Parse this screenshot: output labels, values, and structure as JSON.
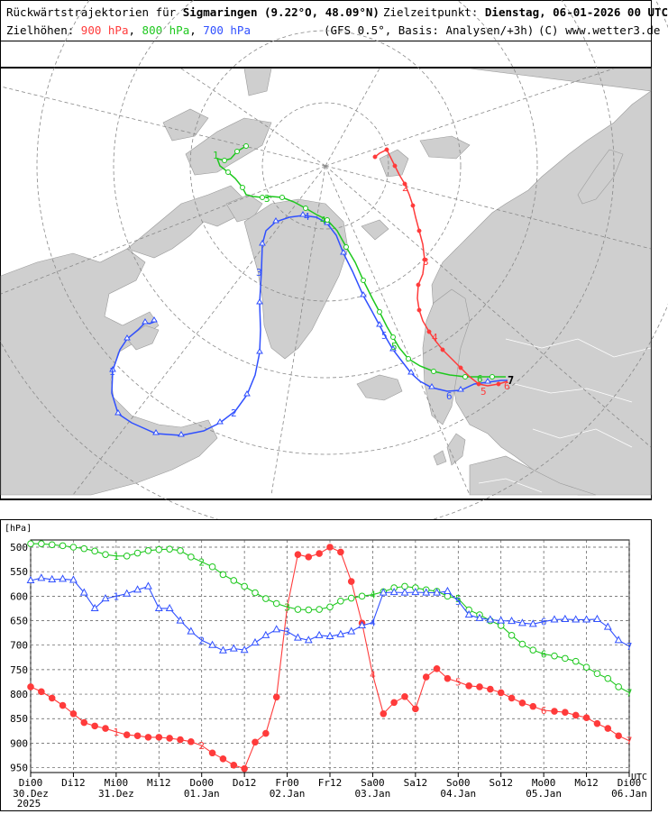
{
  "header": {
    "title_prefix": "Rückwärtstrajektorien für",
    "title_location": "Sigmaringen (9.22°O, 48.09°N)",
    "target_label": "Zielzeitpunkt:",
    "target_value": "Dienstag, 06-01-2026  00 UTC",
    "levels_label": "Zielhöhen:",
    "level_900": "900 hPa",
    "level_800": "800 hPa",
    "level_700": "700 hPa",
    "sep1": ",",
    "sep2": ",",
    "model": "(GFS 0.5°, Basis: Analysen/+3h)",
    "copyright": "(C) www.wetter3.de"
  },
  "map": {
    "land_color": "#cfcfcf",
    "sea_color": "#ffffff",
    "marker_labels_900": [
      "2",
      "3",
      "4",
      "5",
      "6"
    ],
    "marker_labels_800": [
      "1",
      "3",
      "4",
      "5",
      "6"
    ],
    "marker_labels_700": [
      "1",
      "2",
      "3",
      "4",
      "5",
      "6"
    ],
    "end_label": "7"
  },
  "chart_data": {
    "type": "line",
    "y_unit_label": "[hPa]",
    "ylim": [
      500,
      960
    ],
    "y_ticks": [
      500,
      550,
      600,
      650,
      700,
      750,
      800,
      850,
      900,
      950
    ],
    "x_ticks": [
      {
        "t": 0,
        "top": "Di00",
        "bottom": "30.Dez"
      },
      {
        "t": 12,
        "top": "Di12",
        "bottom": ""
      },
      {
        "t": 24,
        "top": "Mi00",
        "bottom": "31.Dez"
      },
      {
        "t": 36,
        "top": "Mi12",
        "bottom": ""
      },
      {
        "t": 48,
        "top": "Do00",
        "bottom": "01.Jan"
      },
      {
        "t": 60,
        "top": "Do12",
        "bottom": ""
      },
      {
        "t": 72,
        "top": "Fr00",
        "bottom": "02.Jan"
      },
      {
        "t": 84,
        "top": "Fr12",
        "bottom": ""
      },
      {
        "t": 96,
        "top": "Sa00",
        "bottom": "03.Jan"
      },
      {
        "t": 108,
        "top": "Sa12",
        "bottom": ""
      },
      {
        "t": 120,
        "top": "So00",
        "bottom": "04.Jan"
      },
      {
        "t": 132,
        "top": "So12",
        "bottom": ""
      },
      {
        "t": 144,
        "top": "Mo00",
        "bottom": "05.Jan"
      },
      {
        "t": 156,
        "top": "Mo12",
        "bottom": ""
      },
      {
        "t": 168,
        "top": "Di00",
        "bottom": "06.Jan"
      }
    ],
    "year_label": "2025",
    "utc_label": "UTC",
    "x_range": [
      0,
      168
    ],
    "grid": true,
    "series": [
      {
        "name": "900 hPa",
        "color": "#ff3b3b",
        "marker": "filled-circle",
        "points": [
          [
            0,
            785
          ],
          [
            3,
            795
          ],
          [
            6,
            808
          ],
          [
            9,
            823
          ],
          [
            12,
            840
          ],
          [
            15,
            858
          ],
          [
            18,
            865
          ],
          [
            21,
            870
          ],
          [
            24,
            877
          ],
          [
            27,
            883
          ],
          [
            30,
            885
          ],
          [
            33,
            888
          ],
          [
            36,
            888
          ],
          [
            39,
            890
          ],
          [
            42,
            893
          ],
          [
            45,
            897
          ],
          [
            48,
            905
          ],
          [
            51,
            920
          ],
          [
            54,
            932
          ],
          [
            57,
            945
          ],
          [
            60,
            952
          ],
          [
            63,
            898
          ],
          [
            66,
            880
          ],
          [
            69,
            806
          ],
          [
            72,
            622
          ],
          [
            75,
            515
          ],
          [
            78,
            520
          ],
          [
            81,
            513
          ],
          [
            84,
            500
          ],
          [
            87,
            510
          ],
          [
            90,
            570
          ],
          [
            93,
            655
          ],
          [
            96,
            760
          ],
          [
            99,
            840
          ],
          [
            102,
            817
          ],
          [
            105,
            805
          ],
          [
            108,
            830
          ],
          [
            111,
            765
          ],
          [
            114,
            748
          ],
          [
            117,
            768
          ],
          [
            120,
            775
          ],
          [
            123,
            783
          ],
          [
            126,
            785
          ],
          [
            129,
            790
          ],
          [
            132,
            797
          ],
          [
            135,
            808
          ],
          [
            138,
            818
          ],
          [
            141,
            825
          ],
          [
            144,
            833
          ],
          [
            147,
            835
          ],
          [
            150,
            837
          ],
          [
            153,
            843
          ],
          [
            156,
            848
          ],
          [
            159,
            860
          ],
          [
            162,
            870
          ],
          [
            165,
            885
          ],
          [
            168,
            895
          ]
        ],
        "labels": [
          {
            "t": 24,
            "text": "1"
          },
          {
            "t": 48,
            "text": "2"
          },
          {
            "t": 72,
            "text": "3"
          },
          {
            "t": 96,
            "text": "4"
          },
          {
            "t": 120,
            "text": "5"
          },
          {
            "t": 144,
            "text": "6"
          },
          {
            "t": 168,
            "text": "7"
          }
        ]
      },
      {
        "name": "800 hPa",
        "color": "#1ec81e",
        "marker": "open-circle",
        "points": [
          [
            0,
            493
          ],
          [
            3,
            493
          ],
          [
            6,
            495
          ],
          [
            9,
            497
          ],
          [
            12,
            500
          ],
          [
            15,
            503
          ],
          [
            18,
            508
          ],
          [
            21,
            515
          ],
          [
            24,
            518
          ],
          [
            27,
            518
          ],
          [
            30,
            512
          ],
          [
            33,
            507
          ],
          [
            36,
            505
          ],
          [
            39,
            504
          ],
          [
            42,
            507
          ],
          [
            45,
            520
          ],
          [
            48,
            530
          ],
          [
            51,
            540
          ],
          [
            54,
            556
          ],
          [
            57,
            568
          ],
          [
            60,
            580
          ],
          [
            63,
            593
          ],
          [
            66,
            605
          ],
          [
            69,
            615
          ],
          [
            72,
            622
          ],
          [
            75,
            627
          ],
          [
            78,
            628
          ],
          [
            81,
            627
          ],
          [
            84,
            622
          ],
          [
            87,
            610
          ],
          [
            90,
            604
          ],
          [
            93,
            600
          ],
          [
            96,
            597
          ],
          [
            99,
            591
          ],
          [
            102,
            583
          ],
          [
            105,
            580
          ],
          [
            108,
            583
          ],
          [
            111,
            587
          ],
          [
            114,
            590
          ],
          [
            117,
            600
          ],
          [
            120,
            605
          ],
          [
            123,
            628
          ],
          [
            126,
            638
          ],
          [
            129,
            650
          ],
          [
            132,
            660
          ],
          [
            135,
            680
          ],
          [
            138,
            698
          ],
          [
            141,
            710
          ],
          [
            144,
            718
          ],
          [
            147,
            722
          ],
          [
            150,
            727
          ],
          [
            153,
            733
          ],
          [
            156,
            745
          ],
          [
            159,
            758
          ],
          [
            162,
            768
          ],
          [
            165,
            785
          ],
          [
            168,
            797
          ]
        ],
        "labels": [
          {
            "t": 24,
            "text": "1"
          },
          {
            "t": 48,
            "text": "2"
          },
          {
            "t": 72,
            "text": "3"
          },
          {
            "t": 96,
            "text": "4"
          },
          {
            "t": 120,
            "text": "5"
          },
          {
            "t": 144,
            "text": "6"
          },
          {
            "t": 168,
            "text": "7"
          }
        ]
      },
      {
        "name": "700 hPa",
        "color": "#3050ff",
        "marker": "open-triangle",
        "points": [
          [
            0,
            568
          ],
          [
            3,
            563
          ],
          [
            6,
            566
          ],
          [
            9,
            565
          ],
          [
            12,
            567
          ],
          [
            15,
            593
          ],
          [
            18,
            625
          ],
          [
            21,
            605
          ],
          [
            24,
            600
          ],
          [
            27,
            595
          ],
          [
            30,
            587
          ],
          [
            33,
            580
          ],
          [
            36,
            625
          ],
          [
            39,
            625
          ],
          [
            42,
            650
          ],
          [
            45,
            672
          ],
          [
            48,
            690
          ],
          [
            51,
            700
          ],
          [
            54,
            711
          ],
          [
            57,
            707
          ],
          [
            60,
            710
          ],
          [
            63,
            695
          ],
          [
            66,
            680
          ],
          [
            69,
            668
          ],
          [
            72,
            672
          ],
          [
            75,
            685
          ],
          [
            78,
            690
          ],
          [
            81,
            680
          ],
          [
            84,
            682
          ],
          [
            87,
            678
          ],
          [
            90,
            672
          ],
          [
            93,
            660
          ],
          [
            96,
            654
          ],
          [
            99,
            593
          ],
          [
            102,
            592
          ],
          [
            105,
            593
          ],
          [
            108,
            592
          ],
          [
            111,
            593
          ],
          [
            114,
            593
          ],
          [
            117,
            590
          ],
          [
            120,
            610
          ],
          [
            123,
            638
          ],
          [
            126,
            645
          ],
          [
            129,
            648
          ],
          [
            132,
            650
          ],
          [
            135,
            651
          ],
          [
            138,
            655
          ],
          [
            141,
            657
          ],
          [
            144,
            652
          ],
          [
            147,
            648
          ],
          [
            150,
            647
          ],
          [
            153,
            648
          ],
          [
            156,
            648
          ],
          [
            159,
            647
          ],
          [
            162,
            663
          ],
          [
            165,
            690
          ],
          [
            168,
            702
          ]
        ],
        "labels": [
          {
            "t": 24,
            "text": "1"
          },
          {
            "t": 48,
            "text": "2"
          },
          {
            "t": 72,
            "text": "3"
          },
          {
            "t": 96,
            "text": "4"
          },
          {
            "t": 120,
            "text": "5"
          },
          {
            "t": 144,
            "text": "6"
          },
          {
            "t": 168,
            "text": "7"
          }
        ]
      }
    ]
  }
}
